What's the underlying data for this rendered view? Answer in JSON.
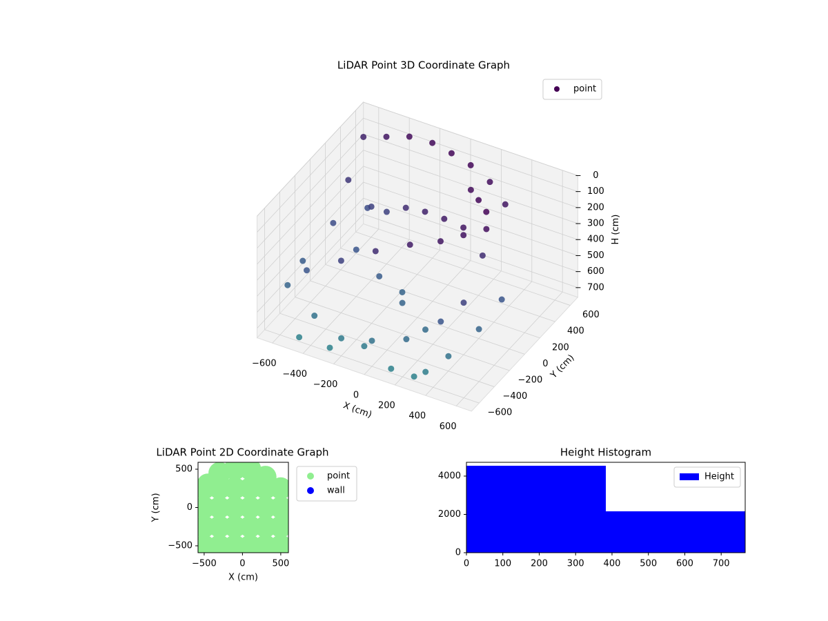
{
  "chart_data": [
    {
      "type": "scatter3d",
      "title": "LiDAR Point 3D Coordinate Graph",
      "xlabel": "X (cm)",
      "ylabel": "Y (cm)",
      "zlabel": "H (cm)",
      "xlim": [
        -700,
        700
      ],
      "ylim": [
        -700,
        700
      ],
      "zlim": [
        0,
        760
      ],
      "z_inverted": true,
      "xticks": [
        {
          "value": -600,
          "label": "−600"
        },
        {
          "value": -400,
          "label": "−400"
        },
        {
          "value": -200,
          "label": "−200"
        },
        0,
        200,
        400,
        600
      ],
      "yticks": [
        {
          "value": -600,
          "label": "−600"
        },
        {
          "value": -400,
          "label": "−400"
        },
        {
          "value": -200,
          "label": "−200"
        },
        0,
        200,
        400,
        600
      ],
      "zticks": [
        0,
        100,
        200,
        300,
        400,
        500,
        600,
        700
      ],
      "legend": "upper right",
      "grid": true,
      "series": [
        {
          "name": "point",
          "colors": [
            "#440154",
            "#3b528b",
            "#2c8a8c"
          ],
          "x": [
            -650,
            -500,
            -350,
            -200,
            -50,
            100,
            250,
            400,
            -600,
            -450,
            -300,
            -150,
            0,
            150,
            300,
            450,
            200,
            300,
            400,
            450,
            350,
            250,
            100,
            -100,
            -300,
            -500,
            -600,
            -400,
            -200,
            0,
            200,
            400,
            500,
            -550,
            -350,
            -150,
            50,
            250,
            450,
            -450,
            -250,
            -50,
            150,
            350,
            550,
            -600,
            -400,
            0,
            300,
            600
          ],
          "y": [
            600,
            600,
            600,
            600,
            550,
            500,
            450,
            350,
            300,
            250,
            200,
            150,
            100,
            50,
            0,
            -50,
            300,
            200,
            100,
            0,
            -100,
            -200,
            -300,
            -350,
            -400,
            -450,
            -500,
            -550,
            -600,
            -600,
            -550,
            -500,
            -400,
            0,
            -100,
            -200,
            -300,
            -400,
            -500,
            -650,
            -650,
            -600,
            -650,
            -600,
            -300,
            -300,
            200,
            -200,
            -650,
            -100
          ],
          "z": [
            150,
            100,
            50,
            40,
            30,
            30,
            60,
            100,
            250,
            350,
            300,
            200,
            150,
            120,
            100,
            200,
            50,
            30,
            20,
            60,
            80,
            100,
            120,
            200,
            300,
            400,
            500,
            600,
            650,
            600,
            550,
            400,
            300,
            350,
            400,
            450,
            500,
            550,
            600,
            700,
            700,
            650,
            700,
            680,
            500,
            450,
            300,
            500,
            700,
            400
          ]
        }
      ]
    },
    {
      "type": "scatter",
      "title": "LiDAR Point 2D Coordinate Graph",
      "xlabel": "X (cm)",
      "ylabel": "Y (cm)",
      "xlim": [
        -580,
        600
      ],
      "ylim": [
        -590,
        590
      ],
      "xticks": [
        {
          "value": -500,
          "label": "−500"
        },
        0,
        500
      ],
      "yticks": [
        {
          "value": -500,
          "label": "−500"
        },
        0,
        500
      ],
      "legend": "outside right",
      "series": [
        {
          "name": "point",
          "color": "#90ee90",
          "x": [
            -500,
            -300,
            -100,
            100,
            300,
            500,
            -500,
            -300,
            -100,
            100,
            300,
            500,
            -500,
            -300,
            -100,
            100,
            300,
            500,
            -500,
            -300,
            -100,
            100,
            300,
            500,
            -100,
            100,
            300,
            -300,
            -450,
            550
          ],
          "y": [
            -500,
            -500,
            -500,
            -500,
            -500,
            -500,
            -250,
            -250,
            -250,
            -250,
            -250,
            -250,
            0,
            0,
            0,
            0,
            0,
            0,
            250,
            250,
            250,
            250,
            250,
            250,
            500,
            500,
            400,
            450,
            300,
            -50
          ]
        },
        {
          "name": "wall",
          "color": "#0000ff",
          "x": [],
          "y": []
        }
      ]
    },
    {
      "type": "histogram",
      "title": "Height Histogram",
      "bins": [
        0,
        383,
        766
      ],
      "values": [
        4540,
        2160
      ],
      "series_name": "Height",
      "color": "#0000ff",
      "xlim": [
        0,
        766
      ],
      "ylim": [
        0,
        4720
      ],
      "xticks": [
        0,
        100,
        200,
        300,
        400,
        500,
        600,
        700
      ],
      "yticks": [
        0,
        2000,
        4000
      ],
      "legend": "upper right"
    }
  ]
}
